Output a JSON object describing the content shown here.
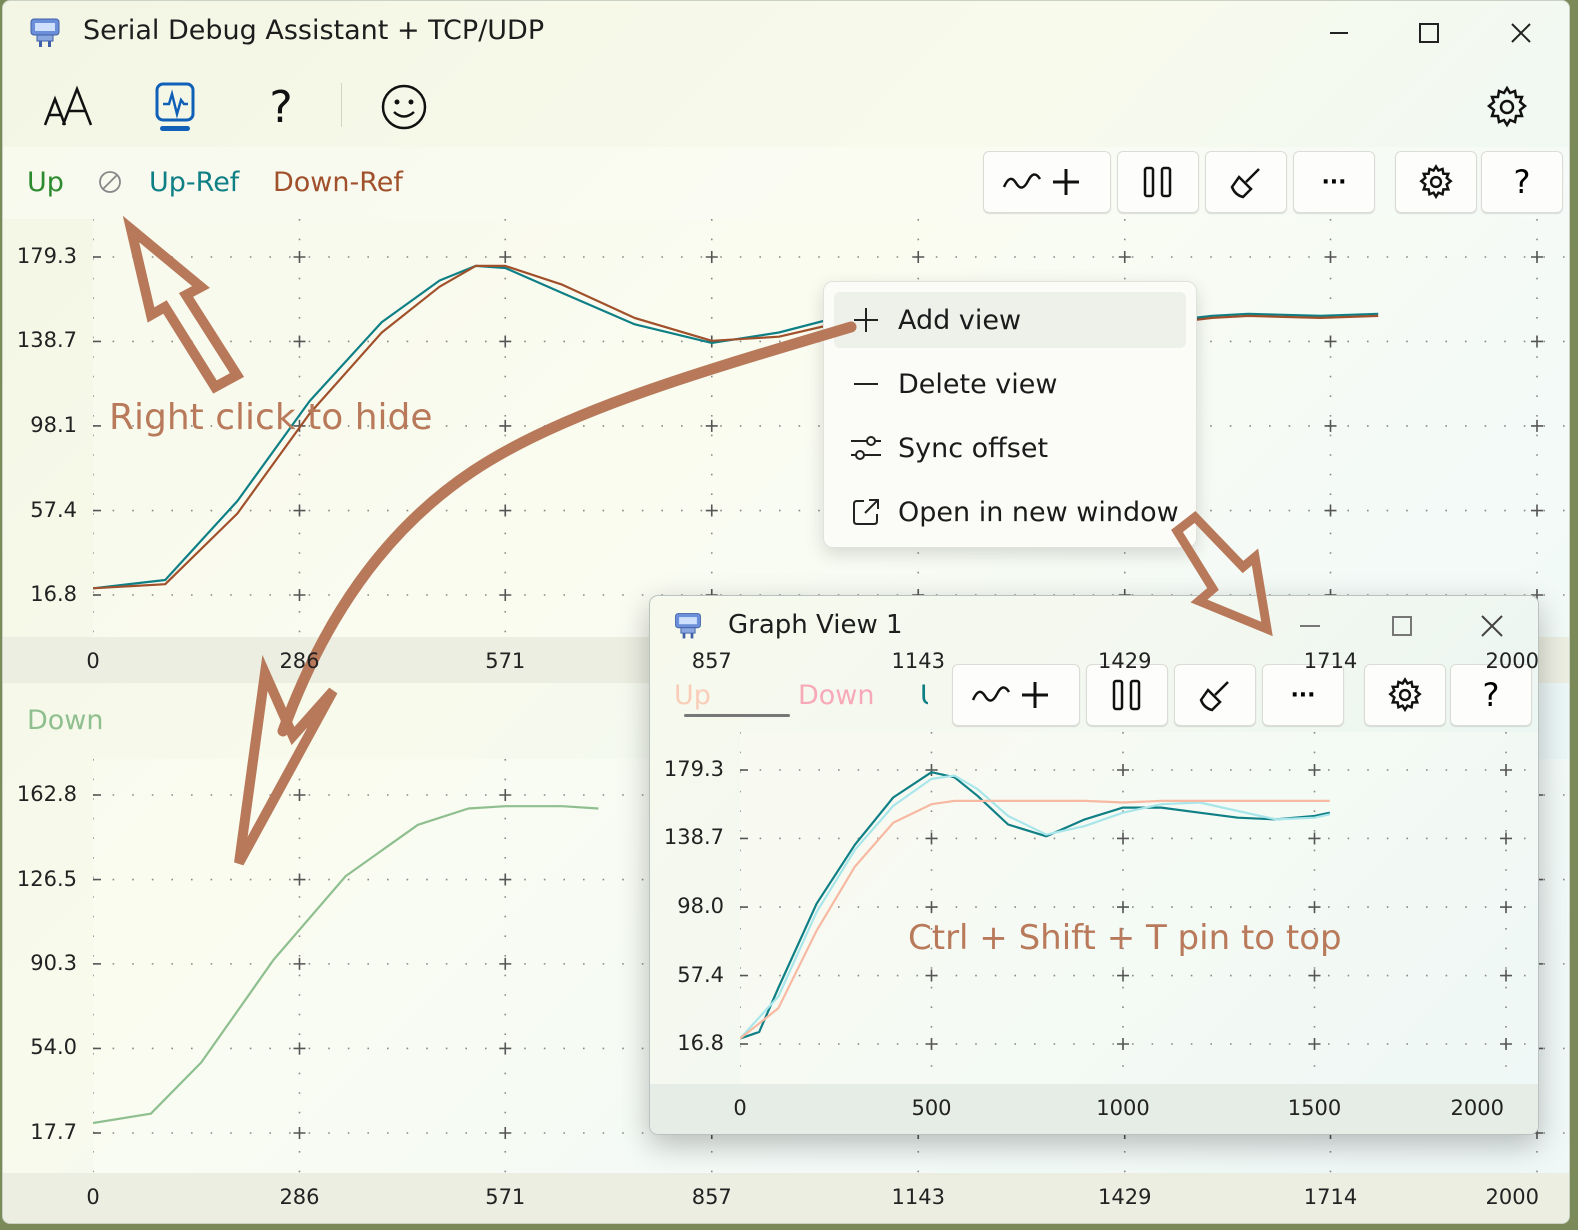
{
  "window": {
    "title": "Serial Debug Assistant + TCP/UDP"
  },
  "nav": {
    "font_icon": "font-size-icon",
    "monitor_icon": "monitor-pulse-icon",
    "help_label": "?",
    "smile_icon": "smiley-icon",
    "settings_icon": "gear-icon"
  },
  "top_plot": {
    "legend": {
      "up": "Up",
      "up_ref": "Up-Ref",
      "down_ref": "Down-Ref"
    },
    "toolbar": {
      "help_label": "?",
      "more_label": "···"
    }
  },
  "bottom_plot": {
    "legend": {
      "down": "Down"
    }
  },
  "context_menu": {
    "items": [
      {
        "label": "Add view",
        "icon": "plus-icon"
      },
      {
        "label": "Delete view",
        "icon": "minus-icon"
      },
      {
        "label": "Sync offset",
        "icon": "sliders-icon"
      },
      {
        "label": "Open in new window",
        "icon": "open-external-icon"
      }
    ]
  },
  "annotations": {
    "right_click": "Right click to hide",
    "pin": "Ctrl + Shift + T  pin to top"
  },
  "graph_view": {
    "title": "Graph View 1",
    "legend": {
      "up": "Up",
      "down": "Down",
      "partial": "U"
    },
    "toolbar": {
      "help_label": "?",
      "more_label": "···"
    }
  },
  "colors": {
    "teal": "#0f7f86",
    "brown": "#a0502a",
    "green": "#2e8a2e",
    "pale_green": "#8fbf8f",
    "arrow": "#b8795a",
    "peach": "#f7b9a2",
    "light_cyan": "#a8e6ea"
  },
  "chart_data": [
    {
      "type": "line",
      "series": [
        {
          "name": "Up-Ref",
          "color": "#0f7f86",
          "x": [
            0,
            100,
            200,
            300,
            400,
            480,
            530,
            571,
            650,
            750,
            857,
            950,
            1050,
            1143,
            1250,
            1350,
            1429,
            1500,
            1550,
            1600,
            1700,
            1780
          ],
          "y": [
            20,
            24,
            62,
            110,
            148,
            168,
            175,
            174,
            162,
            147,
            138,
            143,
            152,
            158,
            154,
            150,
            147,
            149,
            151,
            152,
            151,
            152
          ]
        },
        {
          "name": "Down-Ref",
          "color": "#a0502a",
          "x": [
            0,
            100,
            200,
            300,
            400,
            480,
            530,
            571,
            650,
            750,
            857,
            950,
            1050,
            1143,
            1250,
            1350,
            1429,
            1500,
            1550,
            1600,
            1700,
            1780
          ],
          "y": [
            20,
            22,
            56,
            104,
            143,
            165,
            175,
            175,
            166,
            150,
            139,
            141,
            149,
            157,
            155,
            151,
            148,
            148,
            150,
            151,
            150,
            151
          ]
        }
      ],
      "ylim": [
        16.8,
        179.3
      ],
      "yticks": [
        "179.3",
        "138.7",
        "98.1",
        "57.4",
        "16.8"
      ],
      "xlim": [
        0,
        2000
      ],
      "xticks": [
        "0",
        "286",
        "571",
        "857",
        "1143",
        "1429",
        "1714",
        "2000"
      ]
    },
    {
      "type": "line",
      "series": [
        {
          "name": "Down",
          "color": "#8fbf8f",
          "x": [
            0,
            80,
            150,
            250,
            350,
            450,
            520,
            571,
            650,
            700
          ],
          "y": [
            22,
            26,
            48,
            92,
            128,
            150,
            157,
            158,
            158,
            157
          ]
        }
      ],
      "ylim": [
        17.7,
        162.8
      ],
      "yticks": [
        "162.8",
        "126.5",
        "90.3",
        "54.0",
        "17.7"
      ],
      "xlim": [
        0,
        2000
      ],
      "xticks": [
        "0",
        "286",
        "571",
        "857",
        "1143",
        "1429",
        "1714",
        "2000"
      ]
    },
    {
      "type": "line",
      "series": [
        {
          "name": "Up",
          "color": "#0f7f86",
          "x": [
            0,
            50,
            100,
            200,
            300,
            400,
            500,
            560,
            620,
            700,
            800,
            900,
            1000,
            1100,
            1200,
            1300,
            1400,
            1500,
            1540
          ],
          "y": [
            20,
            24,
            50,
            100,
            135,
            163,
            178,
            175,
            164,
            147,
            140,
            150,
            157,
            157,
            154,
            151,
            150,
            152,
            154
          ]
        },
        {
          "name": "Up-Ref",
          "color": "#a8e6ea",
          "x": [
            0,
            100,
            200,
            300,
            400,
            500,
            560,
            620,
            700,
            800,
            900,
            1000,
            1100,
            1200,
            1300,
            1400,
            1500,
            1540
          ],
          "y": [
            20,
            45,
            95,
            132,
            158,
            174,
            176,
            168,
            152,
            141,
            146,
            154,
            159,
            160,
            155,
            150,
            151,
            153
          ]
        },
        {
          "name": "Down",
          "color": "#f7b9a2",
          "x": [
            0,
            100,
            200,
            300,
            400,
            500,
            560,
            600,
            700,
            800,
            900,
            1000,
            1100,
            1200,
            1300,
            1400,
            1500,
            1540
          ],
          "y": [
            20,
            38,
            84,
            122,
            148,
            159,
            161,
            161,
            161,
            161,
            161,
            160,
            161,
            161,
            161,
            161,
            161,
            161
          ]
        }
      ],
      "ylim": [
        16.8,
        179.3
      ],
      "yticks": [
        "179.3",
        "138.7",
        "98.0",
        "57.4",
        "16.8"
      ],
      "xlim": [
        0,
        2000
      ],
      "xticks": [
        "0",
        "500",
        "1000",
        "1500",
        "2000"
      ]
    }
  ]
}
